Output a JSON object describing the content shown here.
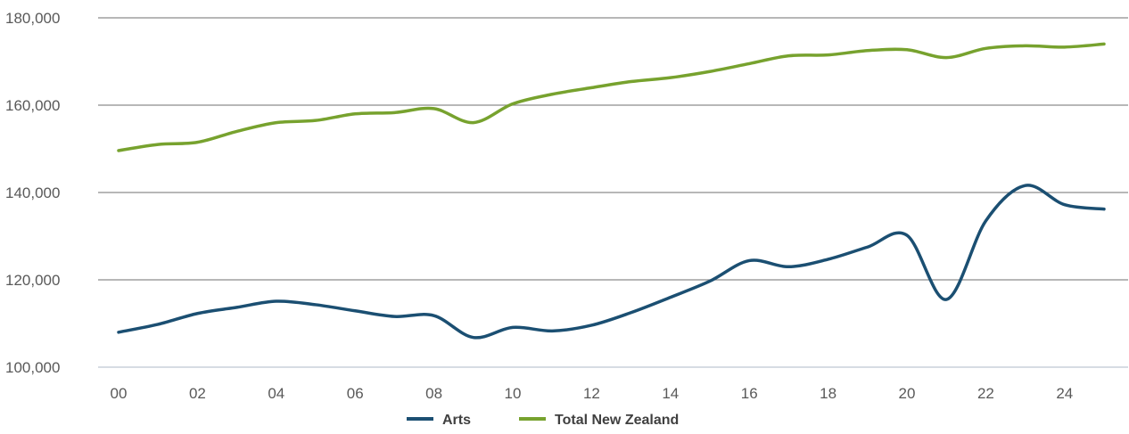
{
  "chart_data": {
    "type": "line",
    "title": "",
    "xlabel": "",
    "ylabel": "",
    "x": [
      "00",
      "01",
      "02",
      "03",
      "04",
      "05",
      "06",
      "07",
      "08",
      "09",
      "10",
      "11",
      "12",
      "13",
      "14",
      "15",
      "16",
      "17",
      "18",
      "19",
      "20",
      "21",
      "22",
      "23",
      "24",
      "25"
    ],
    "x_tick_labels": [
      "00",
      "02",
      "04",
      "06",
      "08",
      "10",
      "12",
      "14",
      "16",
      "18",
      "20",
      "22",
      "24"
    ],
    "y_tick_labels": [
      "100,000",
      "120,000",
      "140,000",
      "160,000",
      "180,000"
    ],
    "y_ticks": [
      100000,
      120000,
      140000,
      160000,
      180000
    ],
    "ylim": [
      100000,
      180000
    ],
    "grid": true,
    "legend_position": "bottom-center",
    "series": [
      {
        "name": "Arts",
        "color": "#1b4f72",
        "values": [
          108000,
          109800,
          112300,
          113700,
          115100,
          114300,
          112900,
          111600,
          111800,
          106800,
          109100,
          108300,
          109600,
          112500,
          116000,
          119700,
          124400,
          123000,
          124700,
          127500,
          130200,
          115500,
          133500,
          141600,
          137200,
          136200
        ]
      },
      {
        "name": "Total New Zealand",
        "color": "#77a22e",
        "values": [
          149600,
          151000,
          151500,
          154000,
          156000,
          156500,
          158000,
          158300,
          159200,
          156000,
          160300,
          162500,
          164000,
          165400,
          166300,
          167700,
          169500,
          171300,
          171500,
          172500,
          172700,
          170900,
          173000,
          173600,
          173300,
          174000
        ]
      }
    ]
  }
}
